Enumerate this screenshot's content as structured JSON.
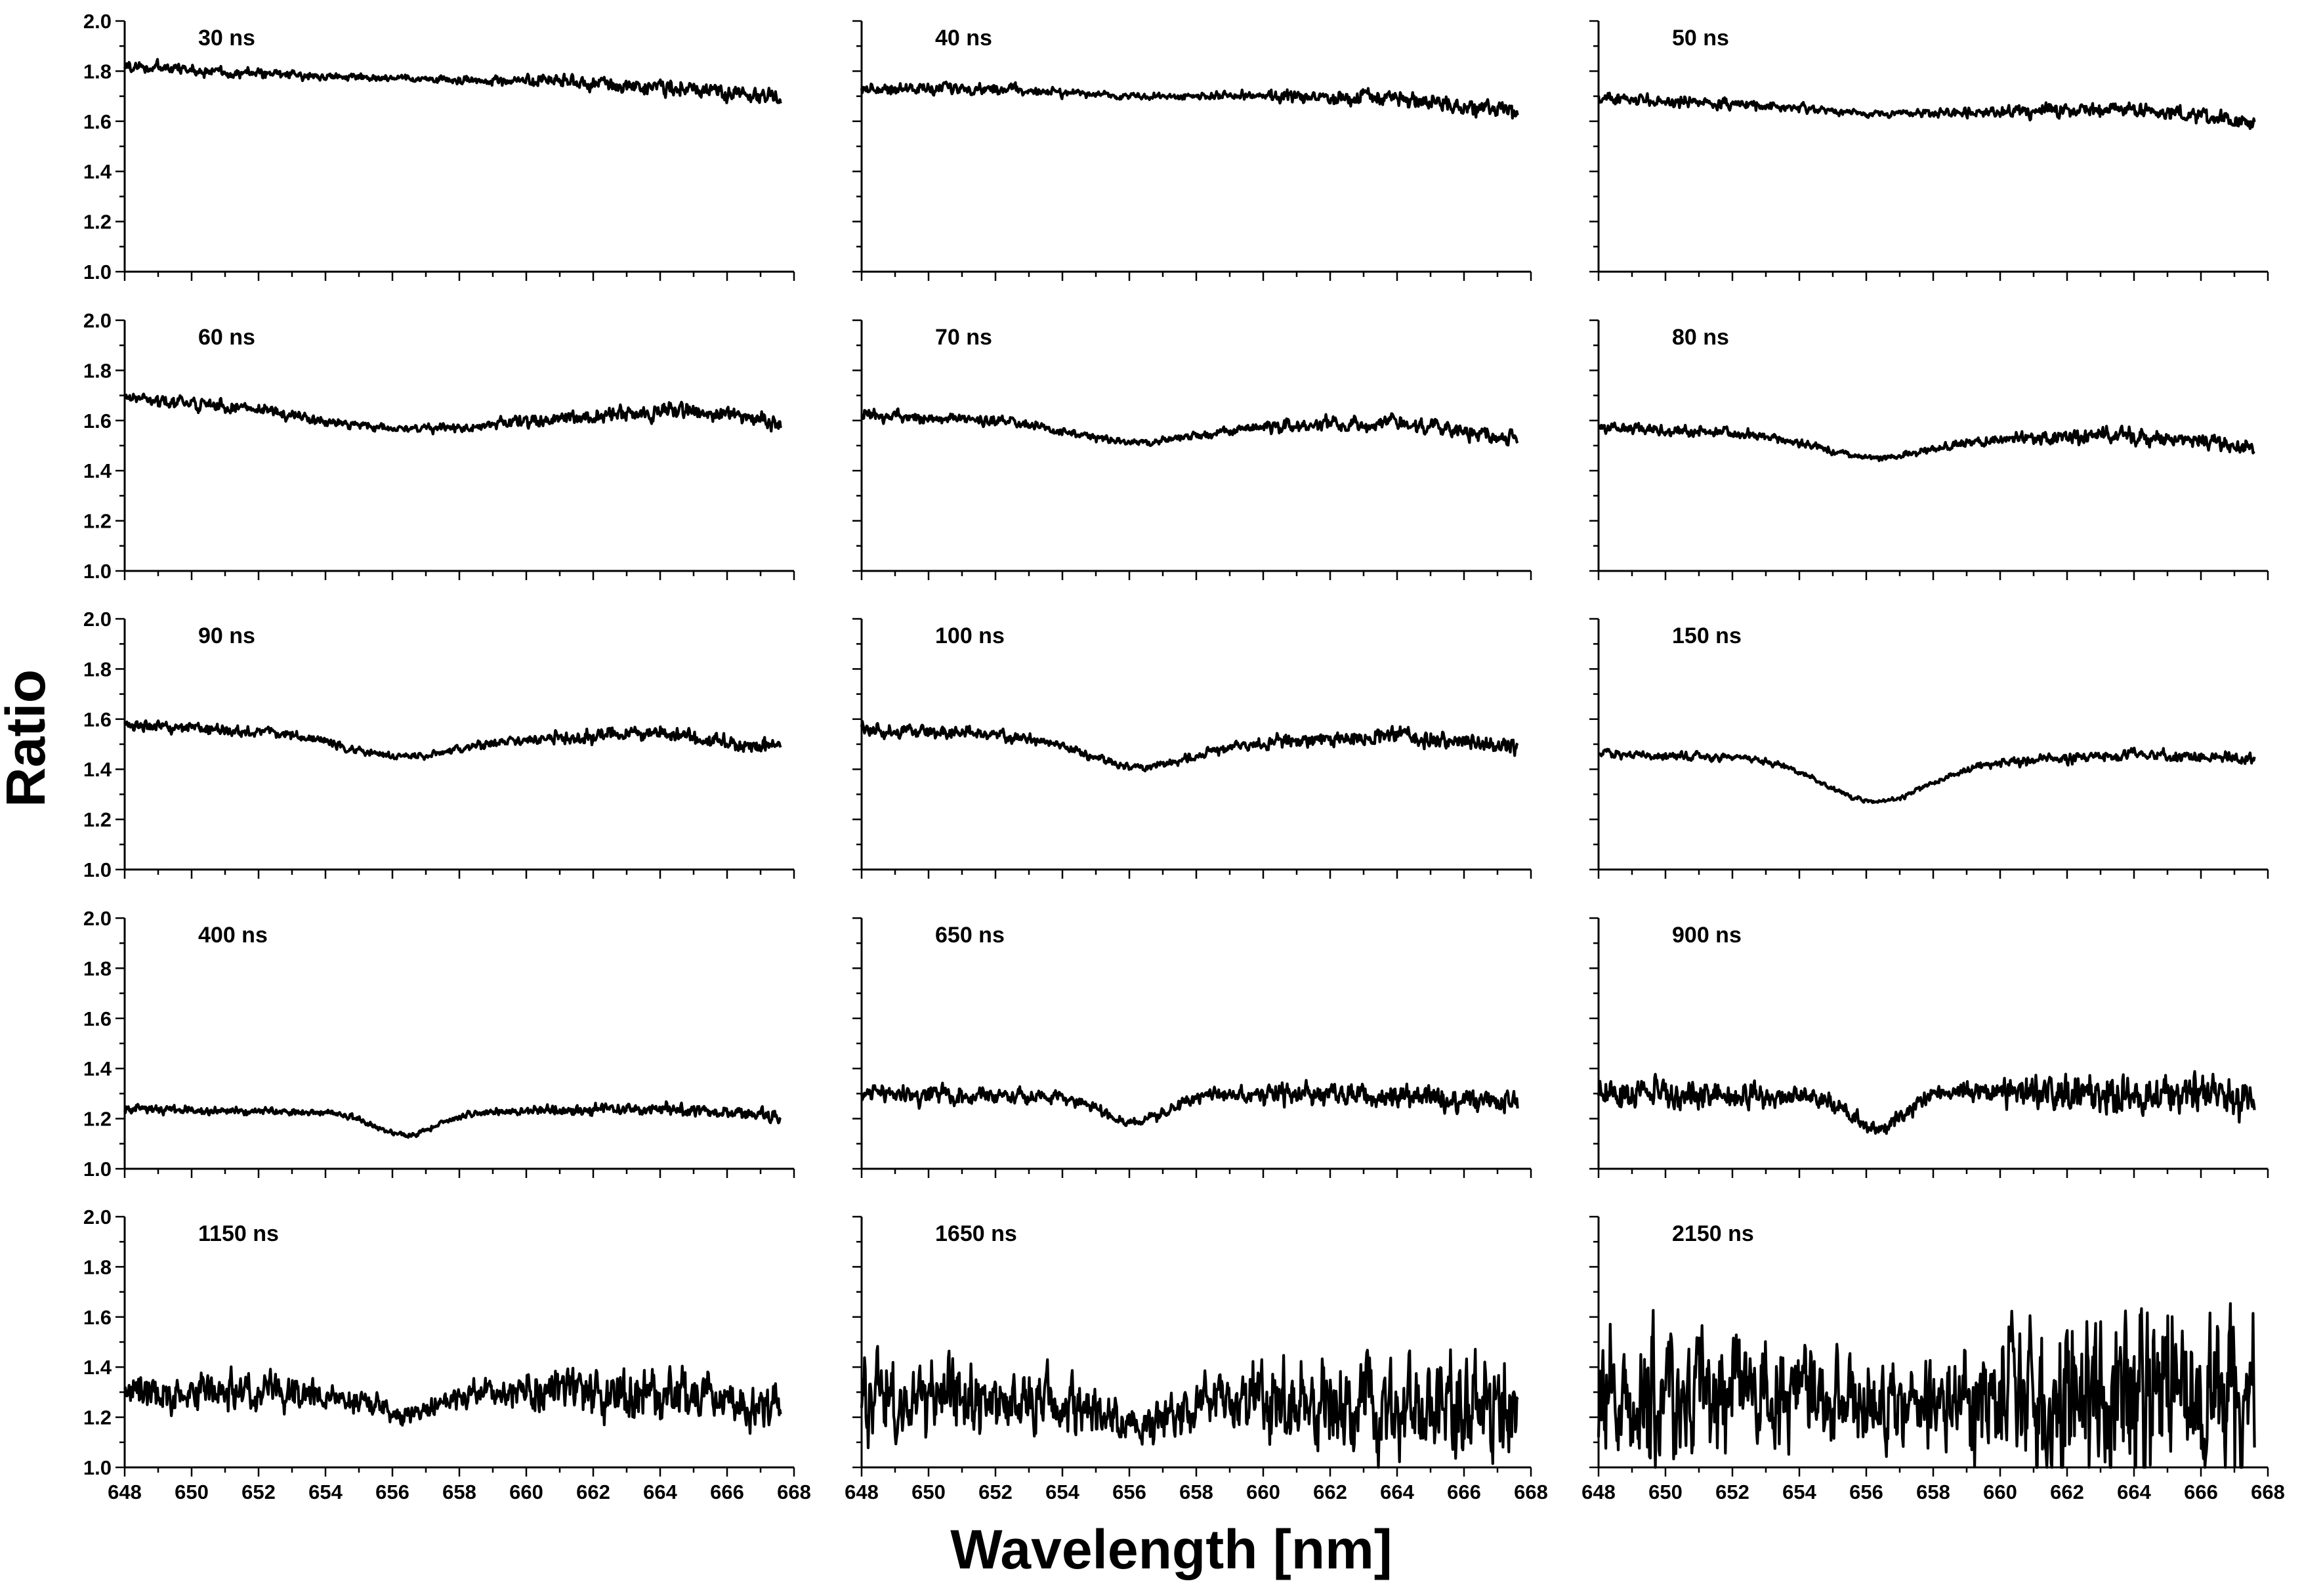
{
  "figure": {
    "xlabel": "Wavelength [nm]",
    "ylabel": "Ratio",
    "line_color": "#000000"
  },
  "chart_data": [
    {
      "type": "line",
      "title": "30 ns",
      "xlim": [
        648,
        668
      ],
      "ylim": [
        1.0,
        2.0
      ],
      "x_range": [
        648,
        667.6
      ],
      "baseline": {
        "x": [
          648,
          652,
          656,
          660,
          664,
          667.6
        ],
        "y": [
          1.82,
          1.79,
          1.77,
          1.76,
          1.74,
          1.69
        ]
      },
      "dip": {
        "center": 656.3,
        "depth": 0.0,
        "width": 1.6
      },
      "noise": 0.014
    },
    {
      "type": "line",
      "title": "40 ns",
      "xlim": [
        648,
        668
      ],
      "ylim": [
        1.0,
        2.0
      ],
      "x_range": [
        648,
        667.6
      ],
      "baseline": {
        "x": [
          648,
          652,
          656,
          660,
          664,
          667.6
        ],
        "y": [
          1.73,
          1.73,
          1.7,
          1.7,
          1.69,
          1.63
        ]
      },
      "dip": {
        "center": 656.3,
        "depth": 0.0,
        "width": 1.6
      },
      "noise": 0.014
    },
    {
      "type": "line",
      "title": "50 ns",
      "xlim": [
        648,
        668
      ],
      "ylim": [
        1.0,
        2.0
      ],
      "x_range": [
        648,
        667.6
      ],
      "baseline": {
        "x": [
          648,
          652,
          656,
          660,
          664,
          667.6
        ],
        "y": [
          1.69,
          1.67,
          1.63,
          1.64,
          1.65,
          1.59
        ]
      },
      "dip": {
        "center": 656.3,
        "depth": 0.0,
        "width": 1.6
      },
      "noise": 0.014
    },
    {
      "type": "line",
      "title": "60 ns",
      "xlim": [
        648,
        668
      ],
      "ylim": [
        1.0,
        2.0
      ],
      "x_range": [
        648,
        667.6
      ],
      "baseline": {
        "x": [
          648,
          651,
          654,
          658,
          662,
          665,
          667.6
        ],
        "y": [
          1.69,
          1.66,
          1.62,
          1.6,
          1.62,
          1.64,
          1.59
        ]
      },
      "dip": {
        "center": 656.3,
        "depth": 0.04,
        "width": 2.2
      },
      "noise": 0.015
    },
    {
      "type": "line",
      "title": "70 ns",
      "xlim": [
        648,
        668
      ],
      "ylim": [
        1.0,
        2.0
      ],
      "x_range": [
        648,
        667.6
      ],
      "baseline": {
        "x": [
          648,
          652,
          656,
          660,
          664,
          667.6
        ],
        "y": [
          1.62,
          1.6,
          1.56,
          1.58,
          1.59,
          1.53
        ]
      },
      "dip": {
        "center": 656.3,
        "depth": 0.05,
        "width": 1.8
      },
      "noise": 0.014
    },
    {
      "type": "line",
      "title": "80 ns",
      "xlim": [
        648,
        668
      ],
      "ylim": [
        1.0,
        2.0
      ],
      "x_range": [
        648,
        667.6
      ],
      "baseline": {
        "x": [
          648,
          652,
          656,
          660,
          664,
          667.6
        ],
        "y": [
          1.57,
          1.55,
          1.52,
          1.53,
          1.54,
          1.49
        ]
      },
      "dip": {
        "center": 656.3,
        "depth": 0.07,
        "width": 1.6
      },
      "noise": 0.014
    },
    {
      "type": "line",
      "title": "90 ns",
      "xlim": [
        648,
        668
      ],
      "ylim": [
        1.0,
        2.0
      ],
      "x_range": [
        648,
        667.6
      ],
      "baseline": {
        "x": [
          648,
          652,
          656,
          660,
          664,
          667.6
        ],
        "y": [
          1.57,
          1.55,
          1.52,
          1.52,
          1.54,
          1.48
        ]
      },
      "dip": {
        "center": 656.3,
        "depth": 0.07,
        "width": 1.6
      },
      "noise": 0.014
    },
    {
      "type": "line",
      "title": "100 ns",
      "xlim": [
        648,
        668
      ],
      "ylim": [
        1.0,
        2.0
      ],
      "x_range": [
        648,
        667.6
      ],
      "baseline": {
        "x": [
          648,
          652,
          656,
          660,
          664,
          667.6
        ],
        "y": [
          1.56,
          1.54,
          1.5,
          1.51,
          1.53,
          1.49
        ]
      },
      "dip": {
        "center": 656.3,
        "depth": 0.09,
        "width": 1.6
      },
      "noise": 0.016
    },
    {
      "type": "line",
      "title": "150 ns",
      "xlim": [
        648,
        668
      ],
      "ylim": [
        1.0,
        2.0
      ],
      "x_range": [
        648,
        667.6
      ],
      "baseline": {
        "x": [
          648,
          652,
          656,
          660,
          664,
          667.6
        ],
        "y": [
          1.46,
          1.45,
          1.42,
          1.43,
          1.46,
          1.44
        ]
      },
      "dip": {
        "center": 656.3,
        "depth": 0.15,
        "width": 1.5
      },
      "noise": 0.01
    },
    {
      "type": "line",
      "title": "400 ns",
      "xlim": [
        648,
        668
      ],
      "ylim": [
        1.0,
        2.0
      ],
      "x_range": [
        648,
        667.6
      ],
      "baseline": {
        "x": [
          648,
          652,
          656,
          660,
          664,
          667.6
        ],
        "y": [
          1.24,
          1.23,
          1.22,
          1.23,
          1.24,
          1.21
        ]
      },
      "dip": {
        "center": 656.4,
        "depth": 0.085,
        "width": 0.9
      },
      "noise": 0.011
    },
    {
      "type": "line",
      "title": "650 ns",
      "xlim": [
        648,
        668
      ],
      "ylim": [
        1.0,
        2.0
      ],
      "x_range": [
        648,
        667.6
      ],
      "baseline": {
        "x": [
          648,
          652,
          656,
          660,
          664,
          667.6
        ],
        "y": [
          1.3,
          1.29,
          1.28,
          1.3,
          1.29,
          1.27
        ]
      },
      "dip": {
        "center": 656.2,
        "depth": 0.1,
        "width": 0.9
      },
      "noise": 0.022
    },
    {
      "type": "line",
      "title": "900 ns",
      "xlim": [
        648,
        668
      ],
      "ylim": [
        1.0,
        2.0
      ],
      "x_range": [
        648,
        667.6
      ],
      "baseline": {
        "x": [
          648,
          652,
          656,
          660,
          664,
          667.6
        ],
        "y": [
          1.31,
          1.3,
          1.29,
          1.31,
          1.3,
          1.28
        ]
      },
      "dip": {
        "center": 656.3,
        "depth": 0.12,
        "width": 0.8
      },
      "noise": 0.035
    },
    {
      "type": "line",
      "title": "1150 ns",
      "xlim": [
        648,
        668
      ],
      "ylim": [
        1.0,
        2.0
      ],
      "x_range": [
        648,
        667.6
      ],
      "baseline": {
        "x": [
          648,
          652,
          656,
          660,
          664,
          667.6
        ],
        "y": [
          1.3,
          1.3,
          1.28,
          1.3,
          1.28,
          1.24
        ]
      },
      "dip": {
        "center": 656.4,
        "depth": 0.08,
        "width": 0.8
      },
      "noise": 0.045
    },
    {
      "type": "line",
      "title": "1650 ns",
      "xlim": [
        648,
        668
      ],
      "ylim": [
        1.0,
        2.0
      ],
      "x_range": [
        648,
        667.6
      ],
      "baseline": {
        "x": [
          648,
          652,
          656,
          660,
          664,
          667.6
        ],
        "y": [
          1.27,
          1.27,
          1.25,
          1.27,
          1.26,
          1.26
        ]
      },
      "dip": {
        "center": 656.2,
        "depth": 0.09,
        "width": 0.8
      },
      "noise": 0.09
    },
    {
      "type": "line",
      "title": "2150 ns",
      "xlim": [
        648,
        668
      ],
      "ylim": [
        1.0,
        2.0
      ],
      "x_range": [
        648,
        667.6
      ],
      "baseline": {
        "x": [
          648,
          652,
          656,
          660,
          664,
          667.6
        ],
        "y": [
          1.28,
          1.28,
          1.28,
          1.29,
          1.27,
          1.26
        ]
      },
      "dip": {
        "center": 656.3,
        "depth": 0.04,
        "width": 0.8
      },
      "noise": 0.16
    }
  ]
}
